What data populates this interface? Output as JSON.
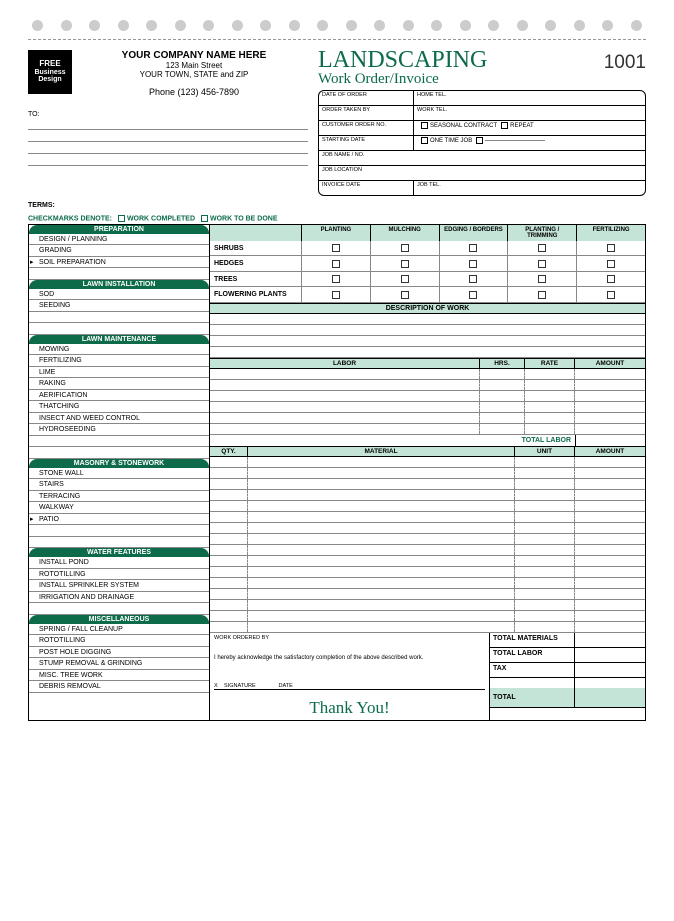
{
  "colors": {
    "green": "#0d6b4a",
    "mint": "#c5e4d8",
    "hole": "#cccccc",
    "border": "#000000",
    "line": "#888888"
  },
  "logo": {
    "l1": "FREE",
    "l2": "Business",
    "l3": "Design"
  },
  "company": {
    "name": "YOUR COMPANY NAME HERE",
    "addr1": "123 Main Street",
    "addr2": "YOUR TOWN, STATE and ZIP",
    "phone": "Phone (123) 456-7890"
  },
  "to_label": "TO:",
  "title1": "LANDSCAPING",
  "title2": "Work Order/Invoice",
  "invoice_no": "1001",
  "order": {
    "date": "DATE OF ORDER",
    "hometel": "HOME TEL.",
    "takenby": "ORDER TAKEN BY",
    "worktel": "WORK TEL.",
    "custno": "CUSTOMER ORDER NO.",
    "seasonal": "SEASONAL CONTRACT",
    "repeat": "REPEAT",
    "startdate": "STARTING DATE",
    "onetime": "ONE TIME JOB",
    "jobname": "JOB NAME / NO.",
    "jobloc": "JOB LOCATION",
    "invdate": "INVOICE DATE",
    "jobtel": "JOB TEL."
  },
  "terms": "TERMS:",
  "denote": {
    "label": "CHECKMARKS DENOTE:",
    "completed": "WORK COMPLETED",
    "tobedone": "WORK TO BE DONE"
  },
  "sections": {
    "preparation": {
      "hdr": "PREPARATION",
      "items": [
        "DESIGN / PLANNING",
        "GRADING",
        "SOIL PREPARATION"
      ]
    },
    "lawn_install": {
      "hdr": "LAWN INSTALLATION",
      "items": [
        "SOD",
        "SEEDING"
      ]
    },
    "lawn_maint": {
      "hdr": "LAWN MAINTENANCE",
      "items": [
        "MOWING",
        "FERTILIZING",
        "LIME",
        "RAKING",
        "AERIFICATION",
        "THATCHING",
        "INSECT AND WEED CONTROL",
        "HYDROSEEDING"
      ]
    },
    "masonry": {
      "hdr": "MASONRY & STONEWORK",
      "items": [
        "STONE WALL",
        "STAIRS",
        "TERRACING",
        "WALKWAY",
        "PATIO"
      ]
    },
    "water": {
      "hdr": "WATER FEATURES",
      "items": [
        "INSTALL POND",
        "ROTOTILLING",
        "INSTALL SPRINKLER SYSTEM",
        "IRRIGATION AND DRAINAGE"
      ]
    },
    "misc": {
      "hdr": "MISCELLANEOUS",
      "items": [
        "SPRING / FALL CLEANUP",
        "ROTOTILLING",
        "POST HOLE DIGGING",
        "STUMP REMOVAL & GRINDING",
        "MISC. TREE WORK",
        "DEBRIS REMOVAL"
      ]
    }
  },
  "plant_cols": [
    "PLANTING",
    "MULCHING",
    "EDGING / BORDERS",
    "PLANTING / TRIMMING",
    "FERTILIZING"
  ],
  "plant_rows": [
    "SHRUBS",
    "HEDGES",
    "TREES",
    "FLOWERING PLANTS"
  ],
  "desc_hdr": "DESCRIPTION OF WORK",
  "labor": {
    "cols": [
      "LABOR",
      "HRS.",
      "RATE",
      "AMOUNT"
    ],
    "total": "TOTAL LABOR"
  },
  "material": {
    "cols": [
      "QTY.",
      "MATERIAL",
      "UNIT",
      "AMOUNT"
    ]
  },
  "bottom": {
    "ordered": "WORK ORDERED BY",
    "ack": "I hereby acknowledge the satisfactory completion of the above described work.",
    "sig": "SIGNATURE",
    "date": "DATE",
    "x": "X"
  },
  "totals": {
    "materials": "TOTAL MATERIALS",
    "labor": "TOTAL LABOR",
    "tax": "TAX",
    "total": "TOTAL"
  },
  "thanks": "Thank You!"
}
